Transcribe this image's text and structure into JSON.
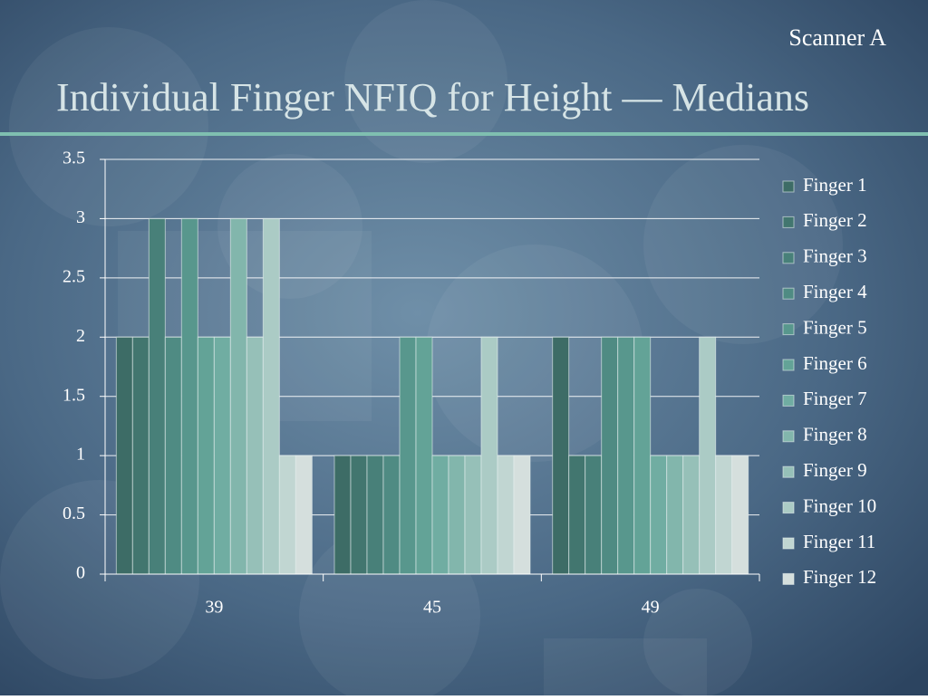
{
  "chart_data": {
    "type": "bar",
    "subtitle": "Scanner A",
    "title": "Individual Finger NFIQ for Height — Medians",
    "categories": [
      "39",
      "45",
      "49"
    ],
    "series": [
      {
        "name": "Finger 1",
        "color": "#3d6c66",
        "values": [
          2,
          1,
          2
        ]
      },
      {
        "name": "Finger 2",
        "color": "#42766f",
        "values": [
          2,
          1,
          1
        ]
      },
      {
        "name": "Finger 3",
        "color": "#488079",
        "values": [
          3,
          1,
          1
        ]
      },
      {
        "name": "Finger 4",
        "color": "#4f8b83",
        "values": [
          2,
          1,
          2
        ]
      },
      {
        "name": "Finger 5",
        "color": "#58978d",
        "values": [
          3,
          2,
          2
        ]
      },
      {
        "name": "Finger 6",
        "color": "#63a397",
        "values": [
          2,
          2,
          2
        ]
      },
      {
        "name": "Finger 7",
        "color": "#70ada2",
        "values": [
          2,
          1,
          1
        ]
      },
      {
        "name": "Finger 8",
        "color": "#82b6ac",
        "values": [
          3,
          1,
          1
        ]
      },
      {
        "name": "Finger 9",
        "color": "#96c0b8",
        "values": [
          2,
          1,
          1
        ]
      },
      {
        "name": "Finger 10",
        "color": "#abcbc5",
        "values": [
          3,
          2,
          2
        ]
      },
      {
        "name": "Finger 11",
        "color": "#c1d6d2",
        "values": [
          1,
          1,
          1
        ]
      },
      {
        "name": "Finger 12",
        "color": "#d5dfdd",
        "values": [
          1,
          1,
          1
        ]
      }
    ],
    "ylim": [
      0,
      3.5
    ],
    "yticks": [
      0,
      0.5,
      1,
      1.5,
      2,
      2.5,
      3,
      3.5
    ],
    "grid": true,
    "legend": "right"
  }
}
